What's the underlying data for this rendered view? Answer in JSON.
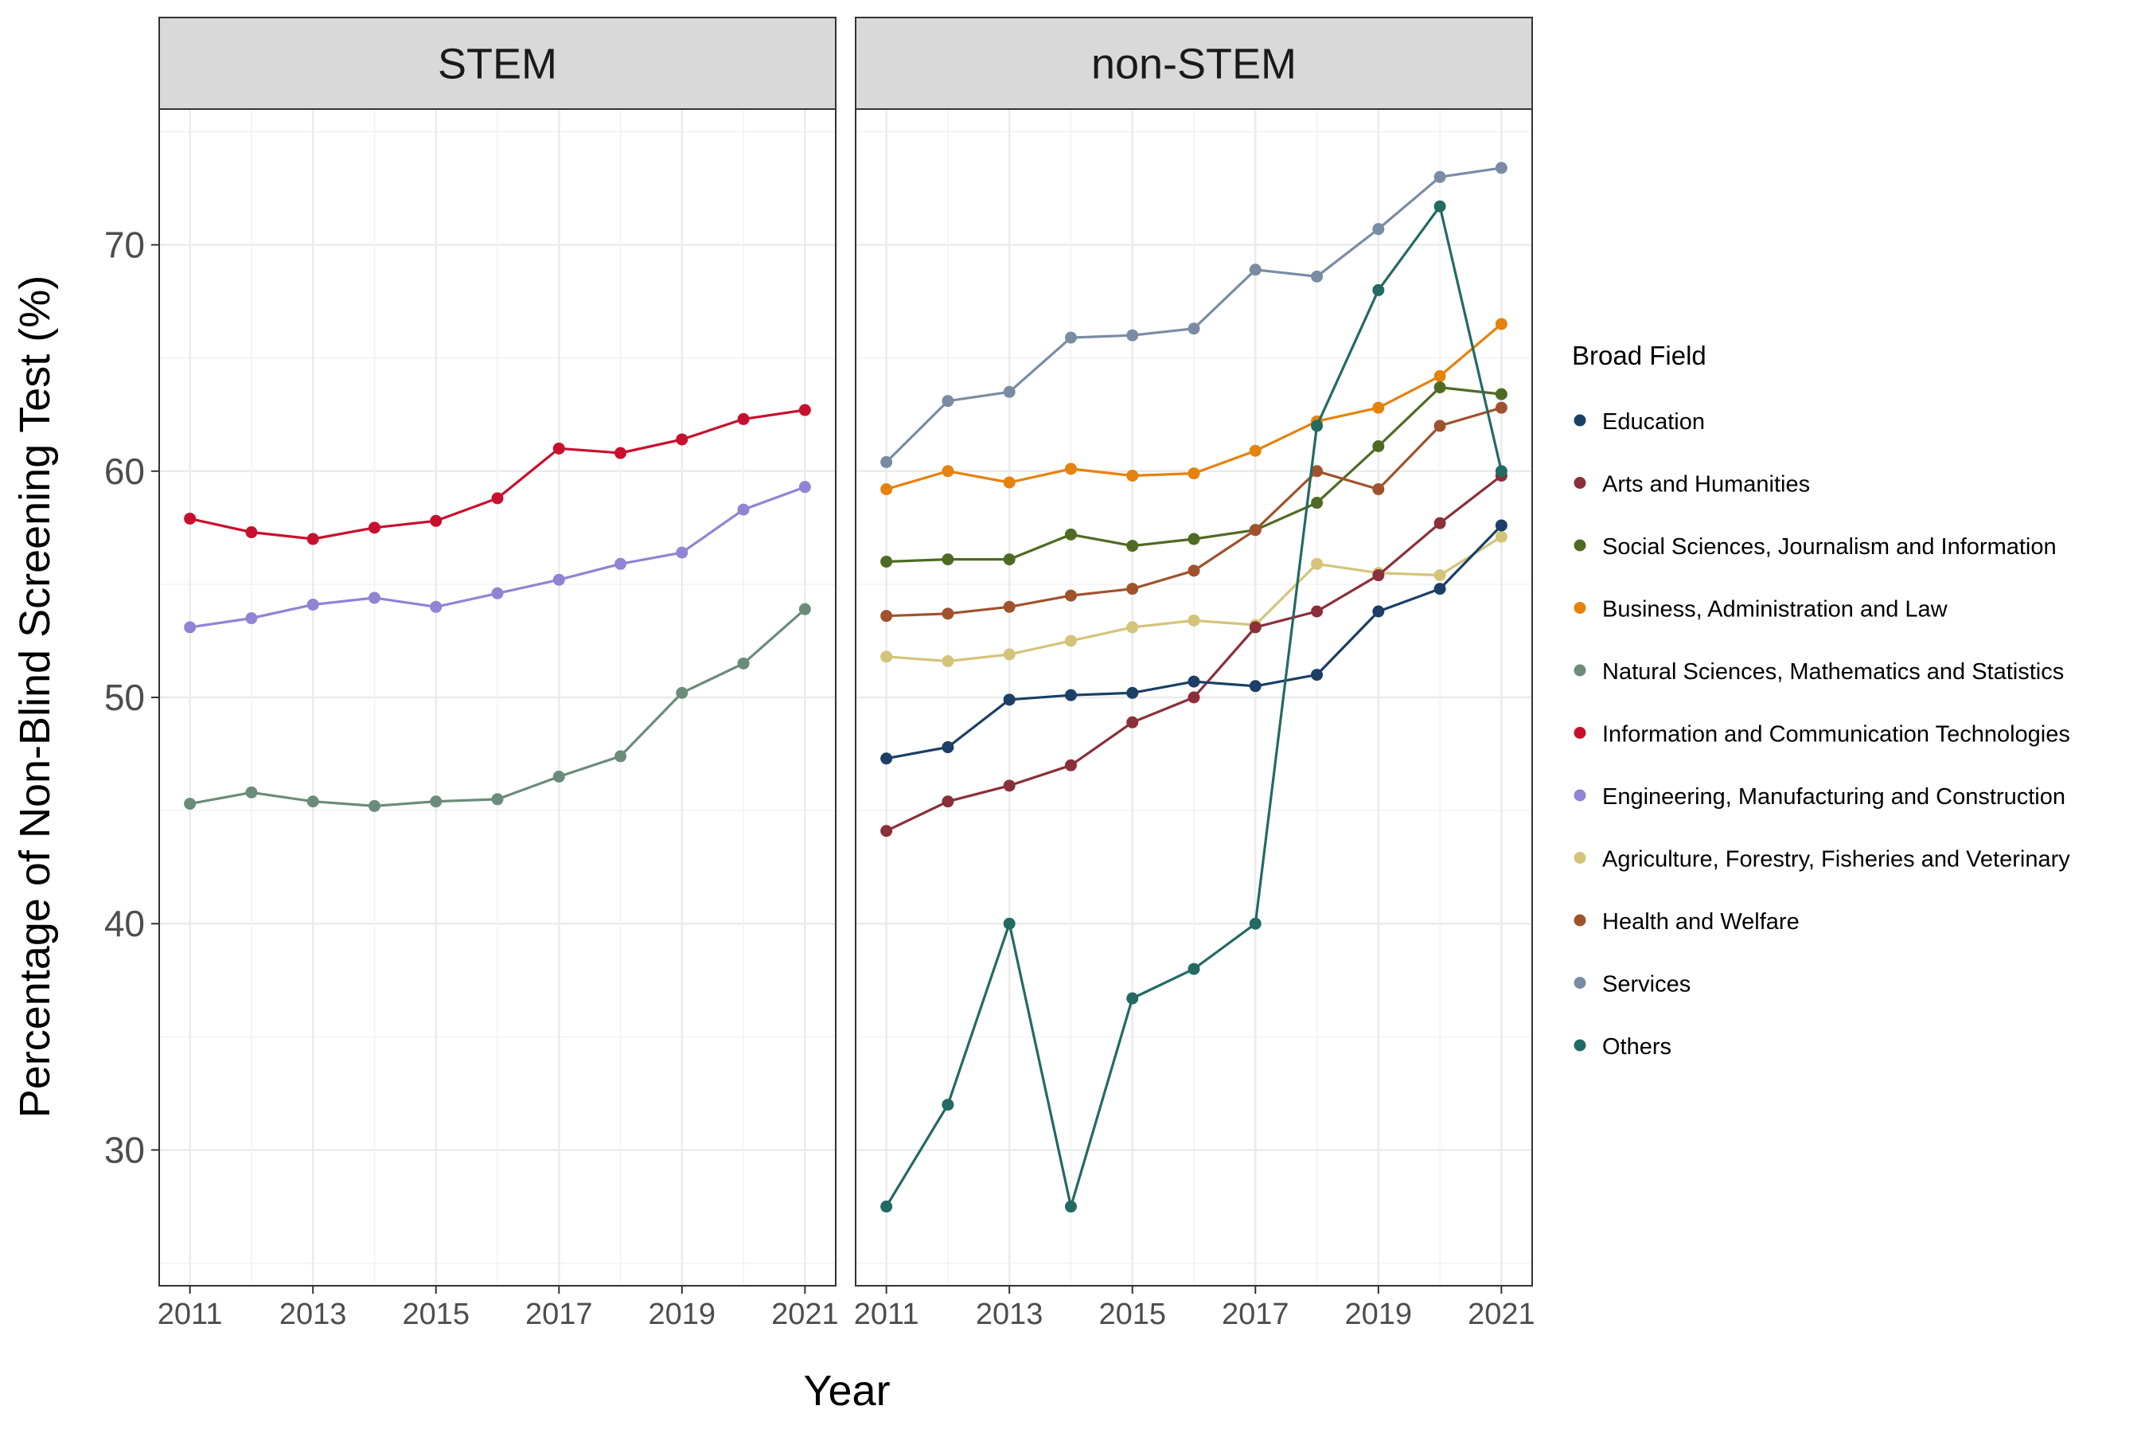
{
  "chart_data": {
    "type": "line",
    "xlabel": "Year",
    "ylabel": "Percentage of Non-Blind Screening Test (%)",
    "x": [
      2011,
      2012,
      2013,
      2014,
      2015,
      2016,
      2017,
      2018,
      2019,
      2020,
      2021
    ],
    "xticks": [
      2011,
      2013,
      2015,
      2017,
      2019,
      2021
    ],
    "xlim": [
      2010.5,
      2021.5
    ],
    "ylim": [
      24,
      76
    ],
    "yticks": [
      30,
      40,
      50,
      60,
      70
    ],
    "grid": true,
    "legend": {
      "title": "Broad Field",
      "placement": "right",
      "entries": [
        {
          "name": "Education",
          "color": "#1b3f66"
        },
        {
          "name": "Arts and Humanities",
          "color": "#8b2f3a"
        },
        {
          "name": "Social Sciences, Journalism and Information",
          "color": "#4f6b23"
        },
        {
          "name": "Business, Administration and Law",
          "color": "#e6820e"
        },
        {
          "name": "Natural Sciences, Mathematics and Statistics",
          "color": "#6b8c7a"
        },
        {
          "name": "Information and Communication Technologies",
          "color": "#c8102e"
        },
        {
          "name": "Engineering, Manufacturing and Construction",
          "color": "#9283d4"
        },
        {
          "name": "Agriculture, Forestry, Fisheries and Veterinary",
          "color": "#d4c47a"
        },
        {
          "name": "Health and Welfare",
          "color": "#a0522d"
        },
        {
          "name": "Services",
          "color": "#7a8ca3"
        },
        {
          "name": "Others",
          "color": "#236a62"
        }
      ]
    },
    "panels": [
      {
        "title": "STEM",
        "series": [
          {
            "name": "Information and Communication Technologies",
            "color": "#c8102e",
            "values": [
              57.9,
              57.3,
              57.0,
              57.5,
              57.8,
              58.8,
              61.0,
              60.8,
              61.4,
              62.3,
              62.7
            ]
          },
          {
            "name": "Engineering, Manufacturing and Construction",
            "color": "#9283d4",
            "values": [
              53.1,
              53.5,
              54.1,
              54.4,
              54.0,
              54.6,
              55.2,
              55.9,
              56.4,
              58.3,
              59.3
            ]
          },
          {
            "name": "Natural Sciences, Mathematics and Statistics",
            "color": "#6b8c7a",
            "values": [
              45.3,
              45.8,
              45.4,
              45.2,
              45.4,
              45.5,
              46.5,
              47.4,
              50.2,
              51.5,
              53.9
            ]
          }
        ]
      },
      {
        "title": "non-STEM",
        "series": [
          {
            "name": "Services",
            "color": "#7a8ca3",
            "values": [
              60.4,
              63.1,
              63.5,
              65.9,
              66.0,
              66.3,
              68.9,
              68.6,
              70.7,
              73.0,
              73.4
            ]
          },
          {
            "name": "Business, Administration and Law",
            "color": "#e6820e",
            "values": [
              59.2,
              60.0,
              59.5,
              60.1,
              59.8,
              59.9,
              60.9,
              62.2,
              62.8,
              64.2,
              66.5
            ]
          },
          {
            "name": "Social Sciences, Journalism and Information",
            "color": "#4f6b23",
            "values": [
              56.0,
              56.1,
              56.1,
              57.2,
              56.7,
              57.0,
              57.4,
              58.6,
              61.1,
              63.7,
              63.4
            ]
          },
          {
            "name": "Health and Welfare",
            "color": "#a0522d",
            "values": [
              53.6,
              53.7,
              54.0,
              54.5,
              54.8,
              55.6,
              57.4,
              60.0,
              59.2,
              62.0,
              62.8
            ]
          },
          {
            "name": "Agriculture, Forestry, Fisheries and Veterinary",
            "color": "#d4c47a",
            "values": [
              51.8,
              51.6,
              51.9,
              52.5,
              53.1,
              53.4,
              53.2,
              55.9,
              55.5,
              55.4,
              57.1
            ]
          },
          {
            "name": "Arts and Humanities",
            "color": "#8b2f3a",
            "values": [
              44.1,
              45.4,
              46.1,
              47.0,
              48.9,
              50.0,
              53.1,
              53.8,
              55.4,
              57.7,
              59.8
            ]
          },
          {
            "name": "Education",
            "color": "#1b3f66",
            "values": [
              47.3,
              47.8,
              49.9,
              50.1,
              50.2,
              50.7,
              50.5,
              51.0,
              53.8,
              54.8,
              57.6
            ]
          },
          {
            "name": "Others",
            "color": "#236a62",
            "values": [
              27.5,
              32.0,
              40.0,
              27.5,
              36.7,
              38.0,
              40.0,
              62.0,
              68.0,
              71.7,
              60.0
            ]
          }
        ]
      }
    ]
  }
}
